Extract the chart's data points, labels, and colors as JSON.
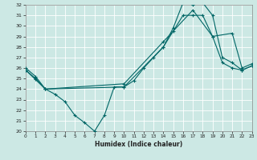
{
  "xlabel": "Humidex (Indice chaleur)",
  "background_color": "#cce8e4",
  "grid_color": "#aacccc",
  "line_color": "#006666",
  "xlim": [
    0,
    23
  ],
  "ylim": [
    20,
    32
  ],
  "xticks": [
    0,
    1,
    2,
    3,
    4,
    5,
    6,
    7,
    8,
    9,
    10,
    11,
    12,
    13,
    14,
    15,
    16,
    17,
    18,
    19,
    20,
    21,
    22,
    23
  ],
  "yticks": [
    20,
    21,
    22,
    23,
    24,
    25,
    26,
    27,
    28,
    29,
    30,
    31,
    32
  ],
  "line1_x": [
    0,
    1,
    2,
    3,
    4,
    5,
    6,
    7,
    8,
    9,
    10,
    11,
    12,
    13,
    14,
    15,
    16,
    17,
    18,
    19,
    20,
    21,
    22,
    23
  ],
  "line1_y": [
    25.8,
    24.9,
    24.0,
    23.5,
    22.8,
    21.5,
    20.8,
    20.0,
    21.5,
    24.2,
    24.2,
    24.8,
    26.0,
    27.0,
    28.0,
    29.5,
    31.0,
    31.0,
    31.0,
    29.0,
    26.5,
    26.0,
    25.8,
    26.2
  ],
  "line2_x": [
    0,
    1,
    2,
    10,
    14,
    15,
    16,
    17,
    18,
    19,
    20,
    21,
    22,
    23
  ],
  "line2_y": [
    25.8,
    25.0,
    24.0,
    24.2,
    28.0,
    29.8,
    32.2,
    32.0,
    32.2,
    31.0,
    27.0,
    26.5,
    25.8,
    26.2
  ],
  "line3_x": [
    0,
    1,
    2,
    10,
    14,
    17,
    19,
    21,
    22,
    23
  ],
  "line3_y": [
    26.0,
    25.2,
    24.0,
    24.5,
    28.5,
    31.5,
    29.0,
    29.3,
    26.0,
    26.4
  ]
}
